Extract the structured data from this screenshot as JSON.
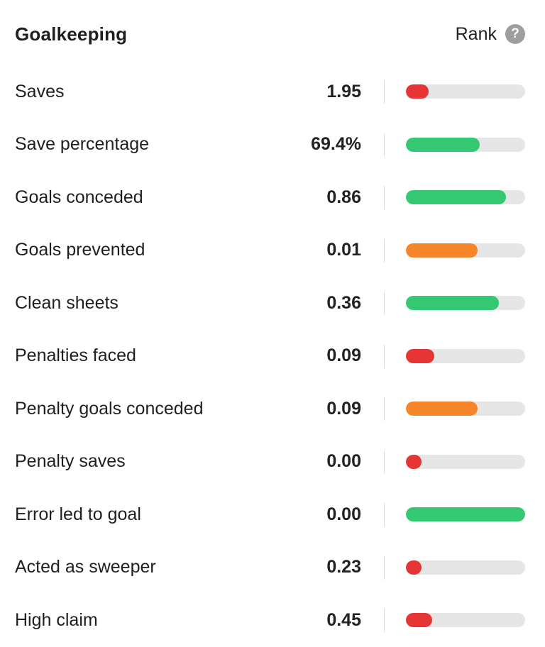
{
  "header": {
    "title": "Goalkeeping",
    "rank_label": "Rank",
    "help_glyph": "?"
  },
  "colors": {
    "red": "#e53535",
    "green": "#33c871",
    "orange": "#f6862a",
    "track": "#e6e6e6"
  },
  "stats": [
    {
      "label": "Saves",
      "value": "1.95",
      "rank_fraction": 0.19,
      "color": "red"
    },
    {
      "label": "Save percentage",
      "value": "69.4%",
      "rank_fraction": 0.62,
      "color": "green"
    },
    {
      "label": "Goals conceded",
      "value": "0.86",
      "rank_fraction": 0.84,
      "color": "green"
    },
    {
      "label": "Goals prevented",
      "value": "0.01",
      "rank_fraction": 0.6,
      "color": "orange"
    },
    {
      "label": "Clean sheets",
      "value": "0.36",
      "rank_fraction": 0.78,
      "color": "green"
    },
    {
      "label": "Penalties faced",
      "value": "0.09",
      "rank_fraction": 0.24,
      "color": "red"
    },
    {
      "label": "Penalty goals conceded",
      "value": "0.09",
      "rank_fraction": 0.6,
      "color": "orange"
    },
    {
      "label": "Penalty saves",
      "value": "0.00",
      "rank_fraction": 0.13,
      "color": "red"
    },
    {
      "label": "Error led to goal",
      "value": "0.00",
      "rank_fraction": 1.0,
      "color": "green"
    },
    {
      "label": "Acted as sweeper",
      "value": "0.23",
      "rank_fraction": 0.13,
      "color": "red"
    },
    {
      "label": "High claim",
      "value": "0.45",
      "rank_fraction": 0.22,
      "color": "red"
    }
  ]
}
